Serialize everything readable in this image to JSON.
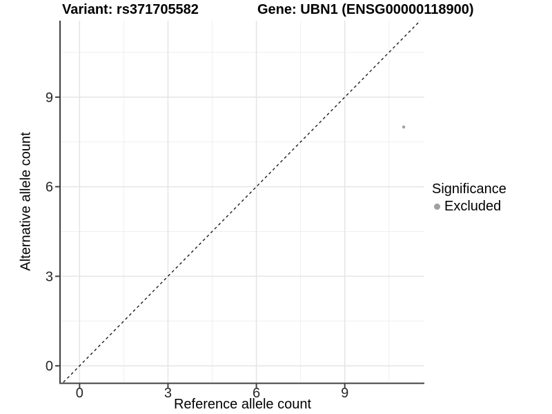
{
  "title": {
    "variant": "Variant: rs371705582",
    "gene": "Gene: UBN1 (ENSG00000118900)"
  },
  "legend": {
    "title": "Significance",
    "items": [
      {
        "label": "Excluded",
        "color": "#a0a0a0"
      }
    ]
  },
  "chart_data": {
    "type": "scatter",
    "title": "Variant: rs371705582 | Gene: UBN1 (ENSG00000118900)",
    "xlabel": "Reference allele count",
    "ylabel": "Alternative allele count",
    "xlim": [
      -0.64,
      11.7
    ],
    "ylim": [
      -0.55,
      11.56
    ],
    "x_breaks": [
      0,
      3,
      6,
      9
    ],
    "y_breaks": [
      0,
      3,
      6,
      9
    ],
    "minor_break_offset": 1.5,
    "grid": true,
    "legend_position": "right",
    "series": [
      {
        "name": "Excluded",
        "color": "#a0a0a0",
        "points": [
          [
            11,
            8
          ]
        ]
      }
    ],
    "reference_line": {
      "kind": "identity",
      "slope": 1,
      "intercept": 0,
      "linetype": "dashed",
      "color": "#1a1a1a"
    }
  },
  "colors": {
    "background": "#ffffff",
    "grid_major": "#e4e4e4",
    "grid_minor": "#efefef",
    "axis_line": "#3f3f3f",
    "tick_label": "#262626",
    "point": "#a0a0a0"
  }
}
